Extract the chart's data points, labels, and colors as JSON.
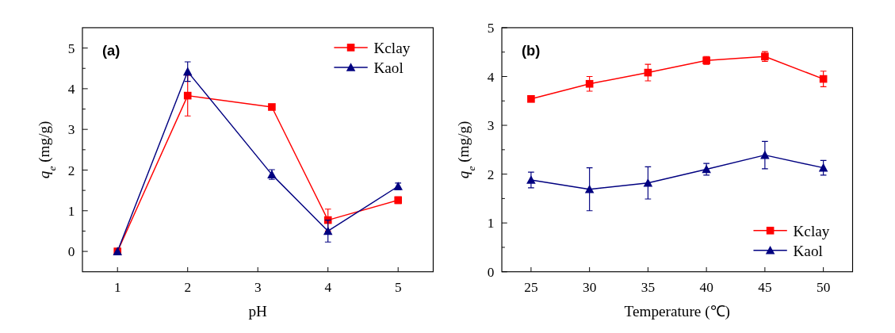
{
  "chart_data": [
    {
      "type": "line",
      "title": "(a)",
      "xlabel": "pH",
      "ylabel": "q$_{e}$ (mg/g)",
      "x": [
        1,
        2,
        3.2,
        4,
        5
      ],
      "xlim": [
        0.5,
        5.5
      ],
      "xticks": [
        1,
        2,
        3,
        4,
        5
      ],
      "ylim": [
        -0.5,
        5.5
      ],
      "yticks": [
        0,
        {
          "value": 0.5,
          "label": null
        },
        1,
        {
          "value": 1.5,
          "label": null
        },
        2,
        {
          "value": 2.5,
          "label": null
        },
        3,
        {
          "value": 3.5,
          "label": null
        },
        4,
        {
          "value": 4.5,
          "label": null
        },
        5
      ],
      "legend": "top right",
      "series": [
        {
          "name": "Kclay",
          "color": "#ff0000",
          "marker": "square",
          "values": [
            0,
            3.83,
            3.55,
            0.77,
            1.26
          ],
          "errors": [
            null,
            0.5,
            null,
            0.27,
            0.08
          ]
        },
        {
          "name": "Kaol",
          "color": "#000080",
          "marker": "triangle",
          "values": [
            0,
            4.42,
            1.89,
            0.5,
            1.6
          ],
          "errors": [
            null,
            0.24,
            0.12,
            0.27,
            0.08
          ]
        }
      ]
    },
    {
      "type": "line",
      "title": "(b)",
      "xlabel": "Temperature (℃)",
      "ylabel": "q$_{e}$ (mg/g)",
      "x": [
        25,
        30,
        35,
        40,
        45,
        50
      ],
      "xlim": [
        22.5,
        52.5
      ],
      "xticks": [
        25,
        30,
        35,
        40,
        45,
        50
      ],
      "ylim": [
        0,
        5
      ],
      "yticks": [
        0,
        {
          "value": 0.5,
          "label": null
        },
        1,
        {
          "value": 1.5,
          "label": null
        },
        2,
        {
          "value": 2.5,
          "label": null
        },
        3,
        {
          "value": 3.5,
          "label": null
        },
        4,
        {
          "value": 4.5,
          "label": null
        },
        5
      ],
      "legend": "bottom right",
      "series": [
        {
          "name": "Kclay",
          "color": "#ff0000",
          "marker": "square",
          "values": [
            3.54,
            3.85,
            4.08,
            4.33,
            4.41,
            3.95
          ],
          "errors": [
            null,
            0.15,
            0.17,
            0.08,
            0.1,
            0.16
          ]
        },
        {
          "name": "Kaol",
          "color": "#000080",
          "marker": "triangle",
          "values": [
            1.88,
            1.69,
            1.82,
            2.1,
            2.39,
            2.13
          ],
          "errors": [
            0.16,
            0.44,
            0.33,
            0.12,
            0.28,
            0.15
          ]
        }
      ]
    }
  ]
}
